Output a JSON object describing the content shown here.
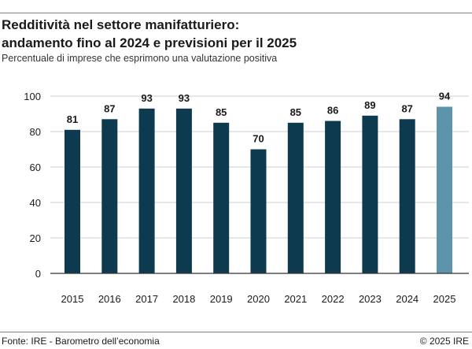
{
  "title_line1": "Redditività nel settore manifatturiero:",
  "title_line2": "andamento fino al 2024 e previsioni per il 2025",
  "subtitle": "Percentuale di imprese che esprimono una valutazione positiva",
  "source": "Fonte: IRE - Barometro dell’economia",
  "copyright": "© 2025 IRE",
  "colors": {
    "actual": "#0d3a4f",
    "forecast": "#5d93ab",
    "gridline": "#cfcfcf",
    "axis": "#333333"
  },
  "chart_data": {
    "type": "bar",
    "title": "Redditività nel settore manifatturiero: andamento fino al 2024 e previsioni per il 2025",
    "xlabel": "",
    "ylabel": "Percentuale di imprese che esprimono una valutazione positiva",
    "categories": [
      "2015",
      "2016",
      "2017",
      "2018",
      "2019",
      "2020",
      "2021",
      "2022",
      "2023",
      "2024",
      "2025"
    ],
    "values": [
      81,
      87,
      93,
      93,
      85,
      70,
      85,
      86,
      89,
      87,
      94
    ],
    "forecast": [
      false,
      false,
      false,
      false,
      false,
      false,
      false,
      false,
      false,
      false,
      true
    ],
    "ylim": [
      0,
      100
    ],
    "yticks": [
      0,
      20,
      40,
      60,
      80,
      100
    ],
    "grid": true,
    "data_labels": true
  }
}
